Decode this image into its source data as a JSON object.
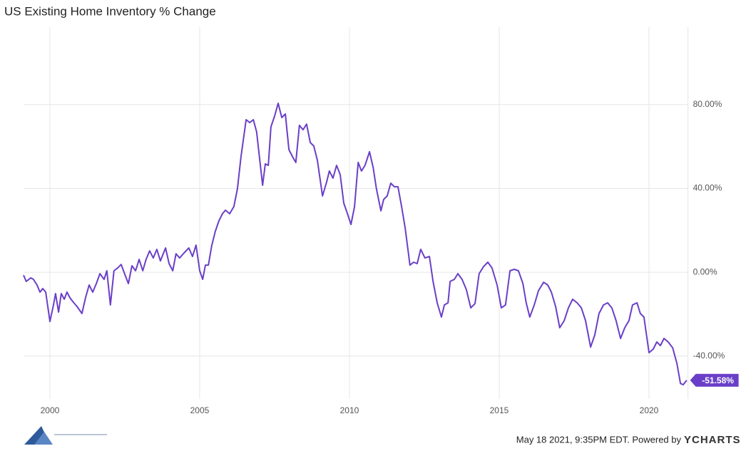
{
  "chart_data": {
    "type": "line",
    "title": "US Existing Home Inventory % Change",
    "footer": "May 18 2021, 9:35PM EDT. Powered by",
    "brand": "YCHARTS",
    "end_label": "-51.58%",
    "xlim": [
      1999.12,
      2021.3
    ],
    "xticks": [
      2000,
      2005,
      2010,
      2015,
      2020
    ],
    "ylim": [
      -60.5,
      117
    ],
    "yticks": [
      {
        "value": -40,
        "label": "-40.00%"
      },
      {
        "value": 0,
        "label": "0.00%"
      },
      {
        "value": 40,
        "label": "40.00%"
      },
      {
        "value": 80,
        "label": "80.00%"
      }
    ],
    "grid": true,
    "series": [
      {
        "name": "US Existing Home Inventory % Change",
        "color": "#6a3fc8",
        "x": [
          1999.12,
          1999.21,
          1999.36,
          1999.45,
          1999.57,
          1999.67,
          1999.76,
          1999.86,
          2000.0,
          2000.12,
          2000.19,
          2000.29,
          2000.38,
          2000.48,
          2000.57,
          2000.67,
          2000.76,
          2000.9,
          2001.07,
          2001.19,
          2001.31,
          2001.43,
          2001.55,
          2001.67,
          2001.81,
          2001.9,
          2002.02,
          2002.14,
          2002.26,
          2002.38,
          2002.5,
          2002.62,
          2002.74,
          2002.86,
          2002.98,
          2003.1,
          2003.21,
          2003.33,
          2003.45,
          2003.57,
          2003.69,
          2003.86,
          2003.98,
          2004.1,
          2004.21,
          2004.33,
          2004.48,
          2004.64,
          2004.76,
          2004.88,
          2005.0,
          2005.1,
          2005.19,
          2005.29,
          2005.4,
          2005.52,
          2005.64,
          2005.76,
          2005.86,
          2006.0,
          2006.14,
          2006.26,
          2006.38,
          2006.55,
          2006.67,
          2006.79,
          2006.9,
          2007.1,
          2007.19,
          2007.29,
          2007.38,
          2007.5,
          2007.62,
          2007.74,
          2007.86,
          2007.98,
          2008.1,
          2008.21,
          2008.33,
          2008.45,
          2008.57,
          2008.69,
          2008.81,
          2008.93,
          2009.1,
          2009.24,
          2009.33,
          2009.45,
          2009.57,
          2009.69,
          2009.81,
          2009.95,
          2010.05,
          2010.17,
          2010.29,
          2010.4,
          2010.52,
          2010.67,
          2010.79,
          2010.9,
          2011.05,
          2011.14,
          2011.26,
          2011.38,
          2011.5,
          2011.62,
          2011.74,
          2011.86,
          2012.02,
          2012.14,
          2012.26,
          2012.38,
          2012.52,
          2012.67,
          2012.79,
          2012.93,
          2013.07,
          2013.17,
          2013.29,
          2013.36,
          2013.5,
          2013.62,
          2013.76,
          2013.9,
          2014.05,
          2014.19,
          2014.33,
          2014.48,
          2014.62,
          2014.76,
          2014.93,
          2015.07,
          2015.21,
          2015.36,
          2015.5,
          2015.64,
          2015.79,
          2015.9,
          2016.02,
          2016.17,
          2016.31,
          2016.48,
          2016.62,
          2016.74,
          2016.88,
          2017.02,
          2017.17,
          2017.31,
          2017.45,
          2017.6,
          2017.74,
          2017.88,
          2018.05,
          2018.19,
          2018.33,
          2018.48,
          2018.62,
          2018.76,
          2018.9,
          2019.05,
          2019.19,
          2019.33,
          2019.45,
          2019.6,
          2019.71,
          2019.83,
          2020.0,
          2020.14,
          2020.26,
          2020.38,
          2020.5,
          2020.64,
          2020.79,
          2020.93,
          2021.05,
          2021.14,
          2021.26
        ],
        "values": [
          -1.4,
          -4.4,
          -2.7,
          -3.4,
          -6.1,
          -9.5,
          -7.8,
          -9.5,
          -23.5,
          -15.6,
          -10.2,
          -19.0,
          -10.2,
          -12.9,
          -9.5,
          -12.2,
          -13.9,
          -16.3,
          -19.7,
          -12.2,
          -6.1,
          -9.5,
          -5.4,
          -0.7,
          -3.4,
          0.7,
          -15.6,
          0.7,
          2.0,
          3.7,
          -1.0,
          -5.4,
          3.1,
          0.7,
          6.1,
          0.7,
          6.1,
          10.2,
          6.8,
          10.9,
          5.4,
          11.6,
          4.1,
          0.7,
          8.8,
          6.8,
          9.2,
          11.6,
          7.5,
          12.9,
          0.7,
          -3.4,
          3.4,
          3.4,
          12.6,
          19.4,
          24.5,
          27.9,
          29.6,
          27.9,
          31.3,
          39.8,
          55.1,
          72.8,
          71.4,
          72.8,
          67.0,
          41.5,
          51.7,
          51.0,
          69.4,
          74.5,
          80.6,
          73.8,
          75.5,
          58.5,
          55.1,
          52.4,
          70.1,
          68.0,
          70.7,
          61.9,
          60.2,
          53.4,
          36.4,
          43.2,
          48.3,
          44.9,
          51.0,
          46.6,
          33.0,
          27.2,
          22.8,
          31.3,
          52.4,
          48.3,
          51.0,
          57.5,
          50.0,
          39.8,
          29.3,
          34.7,
          36.4,
          42.5,
          40.8,
          40.8,
          31.3,
          21.1,
          3.4,
          4.8,
          4.1,
          10.9,
          6.8,
          7.5,
          -4.4,
          -14.6,
          -21.4,
          -15.6,
          -14.6,
          -4.4,
          -3.4,
          -0.7,
          -3.4,
          -8.2,
          -17.0,
          -15.0,
          -0.7,
          2.7,
          4.8,
          2.0,
          -6.1,
          -17.0,
          -15.6,
          0.7,
          1.4,
          0.7,
          -5.4,
          -14.6,
          -21.4,
          -15.6,
          -8.8,
          -4.8,
          -6.1,
          -9.5,
          -16.3,
          -26.5,
          -23.1,
          -17.0,
          -12.9,
          -14.6,
          -17.0,
          -23.1,
          -35.7,
          -29.9,
          -19.7,
          -15.6,
          -14.6,
          -17.0,
          -23.1,
          -31.6,
          -26.5,
          -23.1,
          -15.6,
          -14.6,
          -19.7,
          -21.4,
          -38.4,
          -36.7,
          -33.3,
          -35.0,
          -31.6,
          -33.3,
          -36.1,
          -43.5,
          -53.1,
          -53.7,
          -51.58
        ]
      }
    ]
  }
}
